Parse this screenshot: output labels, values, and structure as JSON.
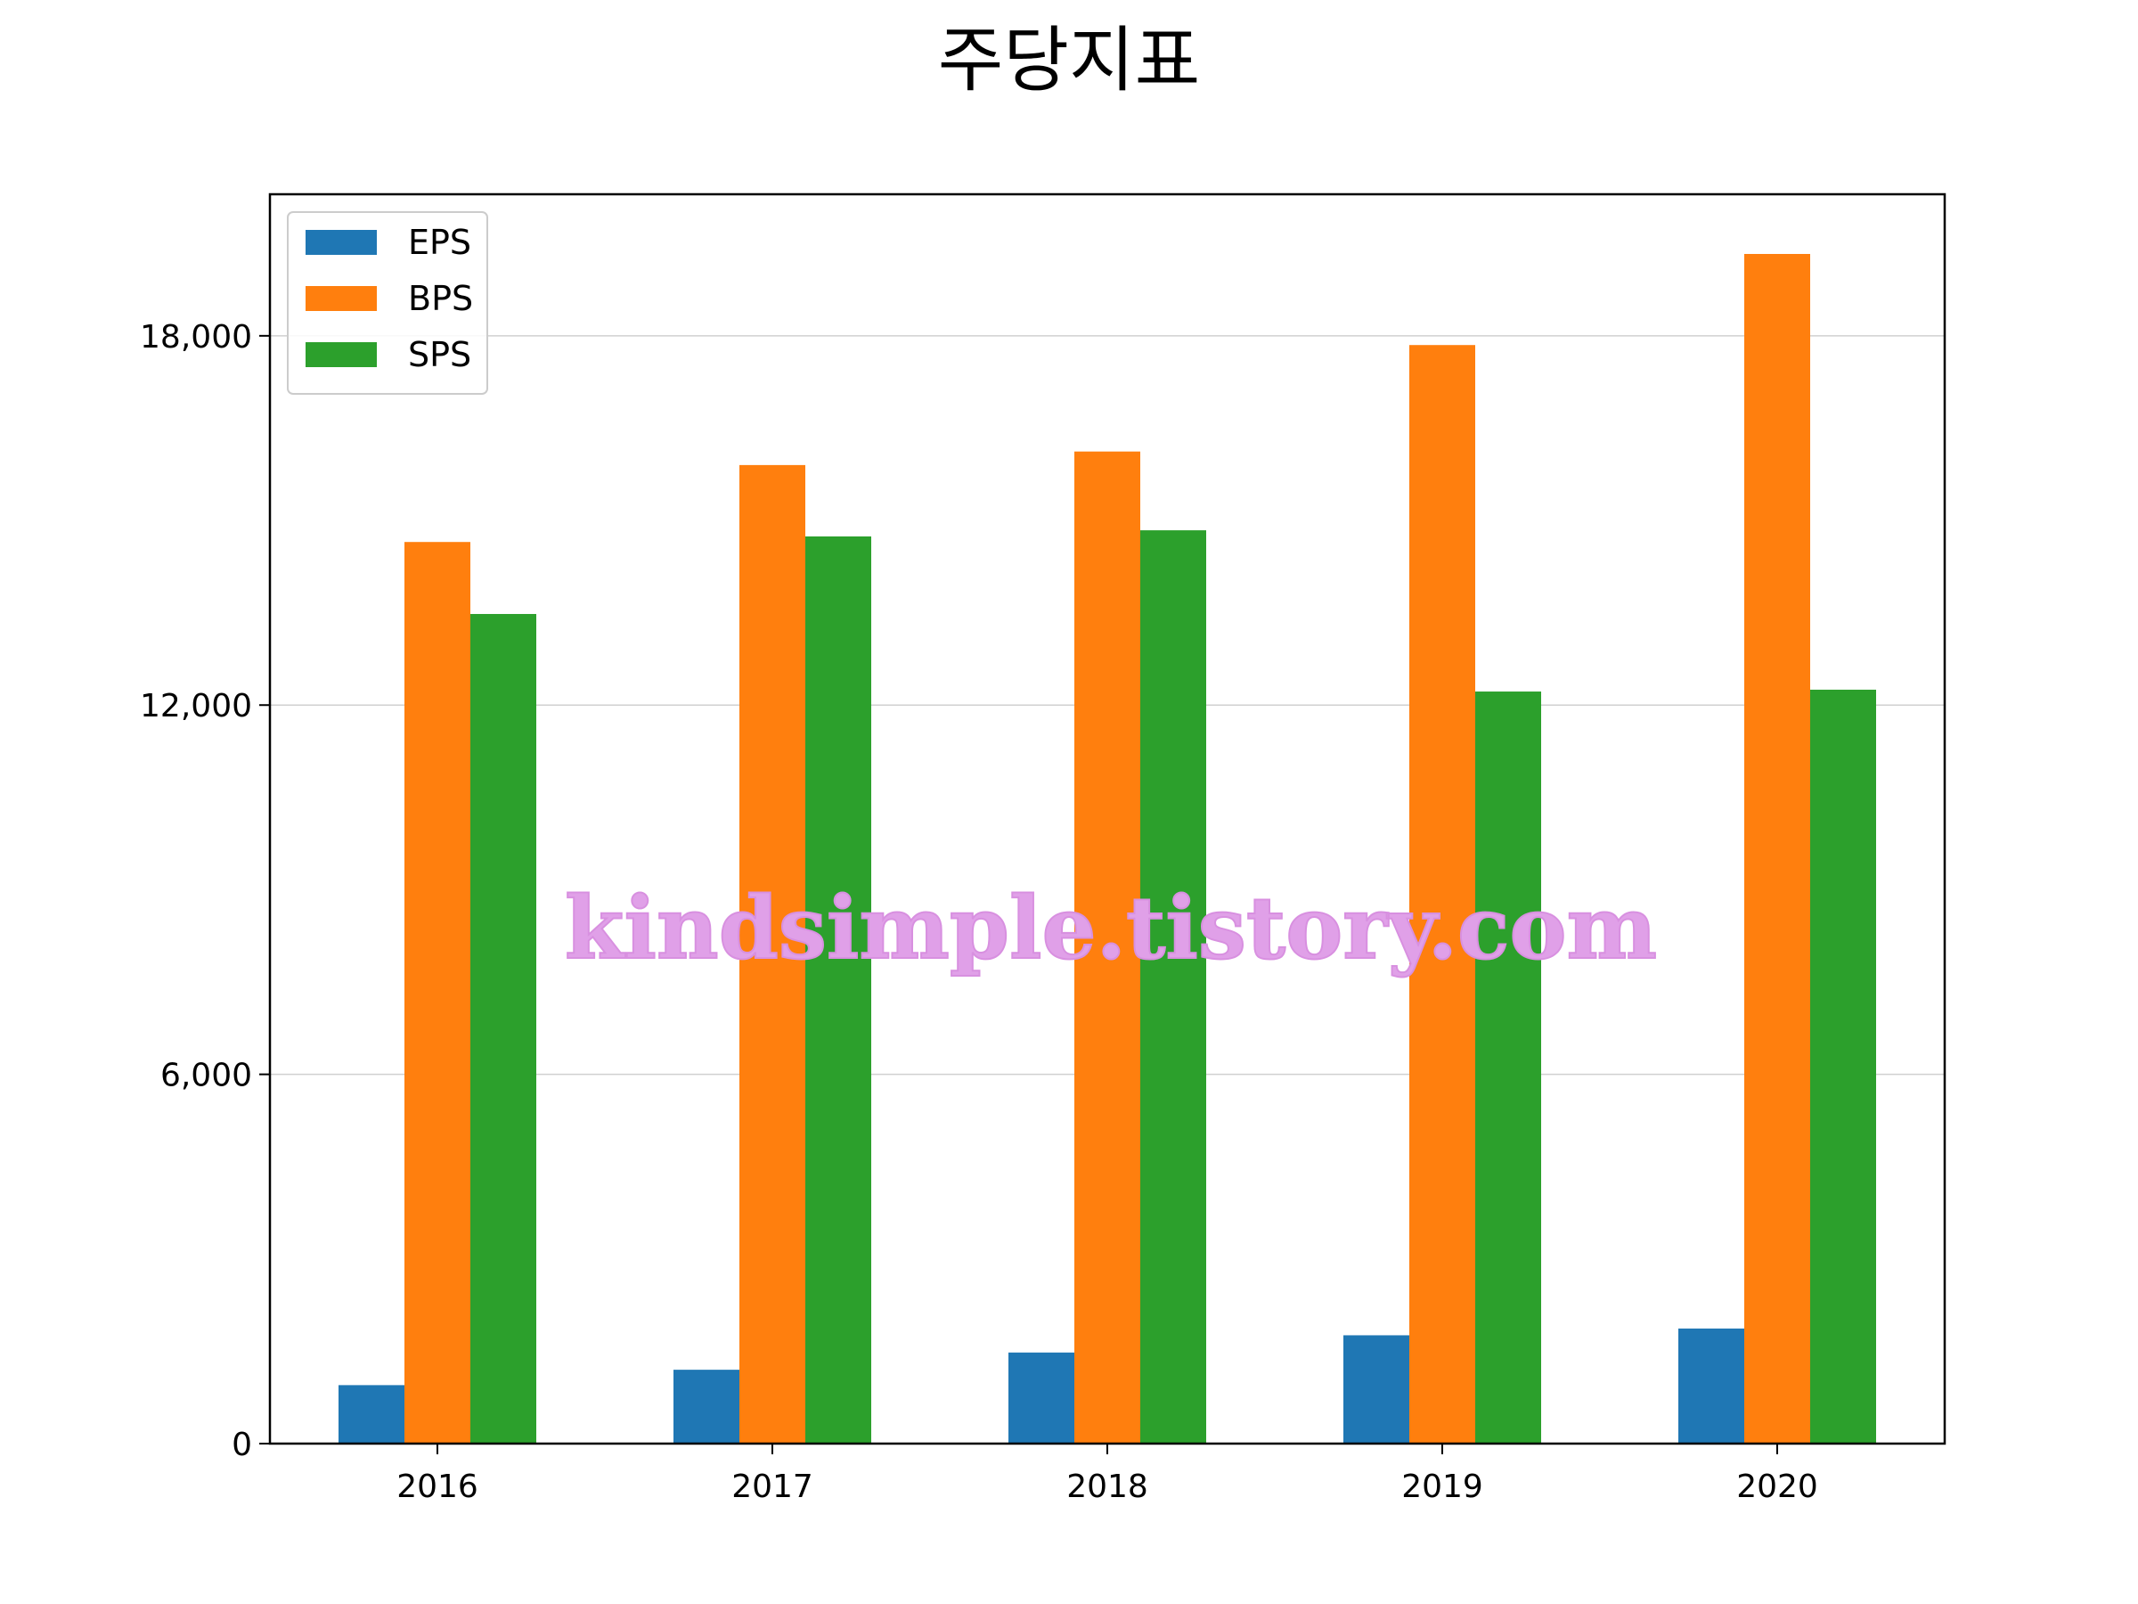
{
  "chart_data": {
    "type": "bar",
    "title": "주당지표",
    "xlabel": "",
    "ylabel": "",
    "categories": [
      "2016",
      "2017",
      "2018",
      "2019",
      "2020"
    ],
    "series": [
      {
        "name": "EPS",
        "color": "#1f77b4",
        "values": [
          950,
          1200,
          1480,
          1760,
          1870
        ]
      },
      {
        "name": "BPS",
        "color": "#ff7f0e",
        "values": [
          14650,
          15900,
          16120,
          17850,
          19330
        ]
      },
      {
        "name": "SPS",
        "color": "#2ca02c",
        "values": [
          13480,
          14740,
          14840,
          12220,
          12250
        ]
      }
    ],
    "ylim": [
      0,
      20300
    ],
    "yticks": [
      0,
      6000,
      12000,
      18000
    ],
    "ytick_labels": [
      "0",
      "6,000",
      "12,000",
      "18,000"
    ],
    "grid": "y-major",
    "legend_position": "upper-left"
  },
  "watermark": "kindsimple.tistory.com"
}
